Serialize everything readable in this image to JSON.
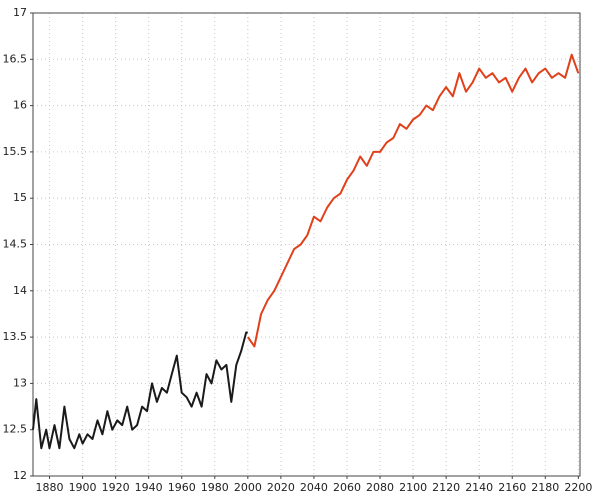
{
  "chart_data": {
    "type": "line",
    "xlim": [
      1870,
      2201
    ],
    "ylim": [
      12,
      17
    ],
    "xticks": [
      1880,
      1900,
      1920,
      1940,
      1960,
      1980,
      2000,
      2020,
      2040,
      2060,
      2080,
      2100,
      2120,
      2140,
      2160,
      2180,
      2200
    ],
    "yticks": [
      12,
      12.5,
      13,
      13.5,
      14,
      14.5,
      15,
      15.5,
      16,
      16.5,
      17
    ],
    "grid": true,
    "series": [
      {
        "color": "#1a1a1a",
        "x": [
          1870,
          1872,
          1875,
          1878,
          1880,
          1883,
          1886,
          1889,
          1892,
          1895,
          1898,
          1900,
          1903,
          1906,
          1909,
          1912,
          1915,
          1918,
          1921,
          1924,
          1927,
          1930,
          1933,
          1936,
          1939,
          1942,
          1945,
          1948,
          1951,
          1954,
          1957,
          1960,
          1963,
          1966,
          1969,
          1972,
          1975,
          1978,
          1981,
          1984,
          1987,
          1990,
          1993,
          1996,
          1999,
          2000
        ],
        "values": [
          12.5,
          12.83,
          12.3,
          12.5,
          12.3,
          12.55,
          12.3,
          12.75,
          12.4,
          12.3,
          12.45,
          12.35,
          12.45,
          12.4,
          12.6,
          12.45,
          12.7,
          12.5,
          12.6,
          12.55,
          12.75,
          12.5,
          12.55,
          12.75,
          12.7,
          13.0,
          12.8,
          12.95,
          12.9,
          13.1,
          13.3,
          12.9,
          12.85,
          12.75,
          12.9,
          12.75,
          13.1,
          13.0,
          13.25,
          13.15,
          13.2,
          12.8,
          13.2,
          13.35,
          13.55,
          13.55
        ]
      },
      {
        "color": "#e0401a",
        "x": [
          2000,
          2004,
          2008,
          2012,
          2016,
          2020,
          2024,
          2028,
          2032,
          2036,
          2040,
          2044,
          2048,
          2052,
          2056,
          2060,
          2064,
          2068,
          2072,
          2076,
          2080,
          2084,
          2088,
          2092,
          2096,
          2100,
          2104,
          2108,
          2112,
          2116,
          2120,
          2124,
          2128,
          2132,
          2136,
          2140,
          2144,
          2148,
          2152,
          2156,
          2160,
          2164,
          2168,
          2172,
          2176,
          2180,
          2184,
          2188,
          2192,
          2196,
          2200
        ],
        "values": [
          13.5,
          13.4,
          13.75,
          13.9,
          14.0,
          14.15,
          14.3,
          14.45,
          14.5,
          14.6,
          14.8,
          14.75,
          14.9,
          15.0,
          15.05,
          15.2,
          15.3,
          15.45,
          15.35,
          15.5,
          15.5,
          15.6,
          15.65,
          15.8,
          15.75,
          15.85,
          15.9,
          16.0,
          15.95,
          16.1,
          16.2,
          16.1,
          16.35,
          16.15,
          16.25,
          16.4,
          16.3,
          16.35,
          16.25,
          16.3,
          16.15,
          16.3,
          16.4,
          16.25,
          16.35,
          16.4,
          16.3,
          16.35,
          16.3,
          16.55,
          16.35
        ]
      }
    ]
  }
}
